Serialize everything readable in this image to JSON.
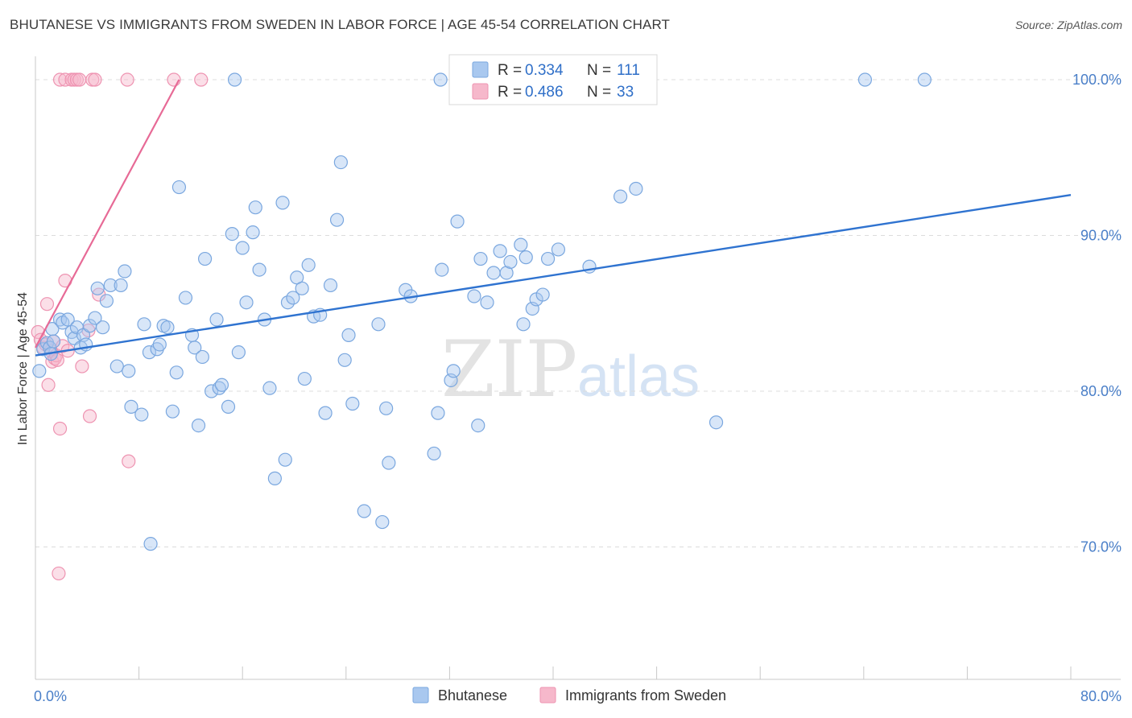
{
  "header": {
    "title": "BHUTANESE VS IMMIGRANTS FROM SWEDEN IN LABOR FORCE | AGE 45-54 CORRELATION CHART",
    "source": "Source: ZipAtlas.com"
  },
  "watermark": {
    "zip": "ZIP",
    "atlas": "atlas"
  },
  "colors": {
    "blue_fill": "#a9c8ef",
    "blue_stroke": "#7aa7df",
    "blue_line": "#2f73d0",
    "pink_fill": "#f6b8cb",
    "pink_stroke": "#ee93b1",
    "pink_line": "#e76a96",
    "tick_label": "#4a7fc8",
    "grid": "#dcdcdc"
  },
  "chart_data": {
    "type": "scatter",
    "title": "Bhutanese vs Immigrants from Sweden in Labor Force | Age 45-54 Correlation Chart",
    "xlabel": "",
    "ylabel": "In Labor Force | Age 45-54",
    "xlim": [
      0,
      80
    ],
    "ylim": [
      61.5,
      101.5
    ],
    "x_tick_labels": [
      "0.0%",
      "80.0%"
    ],
    "y_ticks": [
      70,
      80,
      90,
      100
    ],
    "y_tick_labels": [
      "70.0%",
      "80.0%",
      "90.0%",
      "100.0%"
    ],
    "grid": true,
    "legend_position": "top-center",
    "legend": [
      {
        "series": "Bhutanese",
        "r_label": "R =",
        "r": "0.334",
        "n_label": "N =",
        "n": "111"
      },
      {
        "series": "Immigrants from Sweden",
        "r_label": "R =",
        "r": "0.486",
        "n_label": "N =",
        "n": "33"
      }
    ],
    "series": [
      {
        "name": "Bhutanese",
        "color": "blue",
        "trend": {
          "x": [
            0,
            80
          ],
          "y": [
            82.3,
            92.6
          ]
        },
        "points": [
          [
            0.3,
            81.3
          ],
          [
            0.6,
            82.7
          ],
          [
            0.9,
            83.1
          ],
          [
            1.1,
            82.8
          ],
          [
            1.2,
            82.4
          ],
          [
            1.3,
            84.0
          ],
          [
            1.4,
            83.2
          ],
          [
            1.9,
            84.6
          ],
          [
            2.1,
            84.4
          ],
          [
            2.5,
            84.6
          ],
          [
            2.8,
            83.8
          ],
          [
            3.0,
            83.4
          ],
          [
            3.2,
            84.1
          ],
          [
            3.5,
            82.8
          ],
          [
            3.7,
            83.6
          ],
          [
            3.9,
            83.0
          ],
          [
            4.2,
            84.2
          ],
          [
            4.6,
            84.7
          ],
          [
            4.8,
            86.6
          ],
          [
            5.2,
            84.1
          ],
          [
            5.5,
            85.8
          ],
          [
            5.8,
            86.8
          ],
          [
            6.3,
            81.6
          ],
          [
            6.6,
            86.8
          ],
          [
            6.9,
            87.7
          ],
          [
            7.2,
            81.3
          ],
          [
            7.4,
            79.0
          ],
          [
            8.2,
            78.5
          ],
          [
            8.4,
            84.3
          ],
          [
            8.8,
            82.5
          ],
          [
            8.9,
            70.2
          ],
          [
            9.4,
            82.7
          ],
          [
            9.6,
            83.0
          ],
          [
            9.9,
            84.2
          ],
          [
            10.2,
            84.1
          ],
          [
            10.6,
            78.7
          ],
          [
            10.9,
            81.2
          ],
          [
            11.1,
            93.1
          ],
          [
            11.6,
            86.0
          ],
          [
            12.1,
            83.6
          ],
          [
            12.3,
            82.8
          ],
          [
            12.6,
            77.8
          ],
          [
            12.9,
            82.2
          ],
          [
            13.1,
            88.5
          ],
          [
            13.6,
            80.0
          ],
          [
            14.0,
            84.6
          ],
          [
            14.2,
            80.2
          ],
          [
            14.4,
            80.4
          ],
          [
            14.9,
            79.0
          ],
          [
            15.2,
            90.1
          ],
          [
            15.7,
            82.5
          ],
          [
            16.0,
            89.2
          ],
          [
            16.3,
            85.7
          ],
          [
            16.8,
            90.2
          ],
          [
            17.0,
            91.8
          ],
          [
            17.3,
            87.8
          ],
          [
            17.7,
            84.6
          ],
          [
            18.1,
            80.2
          ],
          [
            18.5,
            74.4
          ],
          [
            19.1,
            92.1
          ],
          [
            19.3,
            75.6
          ],
          [
            19.5,
            85.7
          ],
          [
            19.9,
            86.0
          ],
          [
            20.2,
            87.3
          ],
          [
            20.6,
            86.6
          ],
          [
            20.8,
            80.8
          ],
          [
            21.1,
            88.1
          ],
          [
            21.5,
            84.8
          ],
          [
            22.0,
            84.9
          ],
          [
            22.4,
            78.6
          ],
          [
            22.8,
            86.8
          ],
          [
            23.3,
            91.0
          ],
          [
            23.6,
            94.7
          ],
          [
            23.9,
            82.0
          ],
          [
            24.2,
            83.6
          ],
          [
            24.5,
            79.2
          ],
          [
            25.4,
            72.3
          ],
          [
            26.5,
            84.3
          ],
          [
            26.8,
            71.6
          ],
          [
            27.1,
            78.9
          ],
          [
            27.3,
            75.4
          ],
          [
            28.6,
            86.5
          ],
          [
            29.0,
            86.1
          ],
          [
            30.8,
            76.0
          ],
          [
            31.1,
            78.6
          ],
          [
            31.4,
            87.8
          ],
          [
            32.1,
            80.7
          ],
          [
            32.3,
            81.3
          ],
          [
            32.6,
            90.9
          ],
          [
            33.9,
            86.1
          ],
          [
            34.2,
            77.8
          ],
          [
            34.4,
            88.5
          ],
          [
            34.9,
            85.7
          ],
          [
            35.4,
            87.6
          ],
          [
            35.9,
            89.0
          ],
          [
            36.4,
            87.6
          ],
          [
            36.7,
            88.3
          ],
          [
            37.5,
            89.4
          ],
          [
            37.7,
            84.3
          ],
          [
            37.9,
            88.6
          ],
          [
            38.4,
            85.3
          ],
          [
            38.7,
            85.9
          ],
          [
            39.2,
            86.2
          ],
          [
            39.6,
            88.5
          ],
          [
            40.4,
            89.1
          ],
          [
            42.8,
            88.0
          ],
          [
            45.2,
            92.5
          ],
          [
            46.4,
            93.0
          ],
          [
            52.6,
            78.0
          ],
          [
            15.4,
            100.0
          ],
          [
            31.3,
            100.0
          ],
          [
            64.1,
            100.0
          ],
          [
            68.7,
            100.0
          ]
        ]
      },
      {
        "name": "Immigrants from Sweden",
        "color": "pink",
        "trend": {
          "x": [
            0,
            11.1
          ],
          "y": [
            82.8,
            100.0
          ]
        },
        "points": [
          [
            0.2,
            83.8
          ],
          [
            0.4,
            83.3
          ],
          [
            0.6,
            82.8
          ],
          [
            0.8,
            83.0
          ],
          [
            0.9,
            85.6
          ],
          [
            1.0,
            80.4
          ],
          [
            1.2,
            82.6
          ],
          [
            1.3,
            81.9
          ],
          [
            1.4,
            83.2
          ],
          [
            1.5,
            82.1
          ],
          [
            1.6,
            82.3
          ],
          [
            1.7,
            82.0
          ],
          [
            1.8,
            68.3
          ],
          [
            1.9,
            77.6
          ],
          [
            2.1,
            82.9
          ],
          [
            2.3,
            87.1
          ],
          [
            2.5,
            82.6
          ],
          [
            3.6,
            81.6
          ],
          [
            4.1,
            83.9
          ],
          [
            4.2,
            78.4
          ],
          [
            4.9,
            86.2
          ],
          [
            7.2,
            75.5
          ],
          [
            1.9,
            100.0
          ],
          [
            2.3,
            100.0
          ],
          [
            2.8,
            100.0
          ],
          [
            3.0,
            100.0
          ],
          [
            3.2,
            100.0
          ],
          [
            3.4,
            100.0
          ],
          [
            4.4,
            100.0
          ],
          [
            4.6,
            100.0
          ],
          [
            7.1,
            100.0
          ],
          [
            10.7,
            100.0
          ],
          [
            12.8,
            100.0
          ]
        ]
      }
    ]
  }
}
